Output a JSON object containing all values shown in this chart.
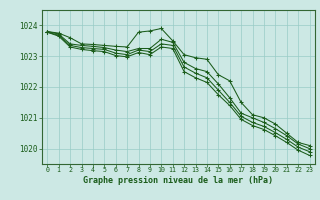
{
  "background_color": "#cce8e4",
  "grid_color": "#99ccc6",
  "line_color": "#1a5c1a",
  "spine_color": "#336633",
  "title": "Graphe pression niveau de la mer (hPa)",
  "xlim": [
    -0.5,
    23.5
  ],
  "ylim": [
    1019.5,
    1024.5
  ],
  "yticks": [
    1020,
    1021,
    1022,
    1023,
    1024
  ],
  "xticks": [
    0,
    1,
    2,
    3,
    4,
    5,
    6,
    7,
    8,
    9,
    10,
    11,
    12,
    13,
    14,
    15,
    16,
    17,
    18,
    19,
    20,
    21,
    22,
    23
  ],
  "series": [
    {
      "x": [
        0,
        1,
        2,
        3,
        4,
        5,
        6,
        7,
        8,
        9,
        10,
        11,
        12,
        13,
        14,
        15,
        16,
        17,
        18,
        19,
        20,
        21,
        22,
        23
      ],
      "y": [
        1023.8,
        1023.75,
        1023.6,
        1023.4,
        1023.38,
        1023.35,
        1023.32,
        1023.3,
        1023.78,
        1023.82,
        1023.9,
        1023.5,
        1023.05,
        1022.95,
        1022.9,
        1022.4,
        1022.2,
        1021.5,
        1021.1,
        1021.0,
        1020.8,
        1020.5,
        1020.2,
        1020.1
      ]
    },
    {
      "x": [
        0,
        1,
        2,
        3,
        4,
        5,
        6,
        7,
        8,
        9,
        10,
        11,
        12,
        13,
        14,
        15,
        16,
        17,
        18,
        19,
        20,
        21,
        22,
        23
      ],
      "y": [
        1023.8,
        1023.72,
        1023.4,
        1023.35,
        1023.32,
        1023.28,
        1023.2,
        1023.15,
        1023.25,
        1023.25,
        1023.55,
        1023.45,
        1022.8,
        1022.6,
        1022.5,
        1022.1,
        1021.65,
        1021.15,
        1021.0,
        1020.85,
        1020.65,
        1020.42,
        1020.15,
        1020.0
      ]
    },
    {
      "x": [
        0,
        1,
        2,
        3,
        4,
        5,
        6,
        7,
        8,
        9,
        10,
        11,
        12,
        13,
        14,
        15,
        16,
        17,
        18,
        19,
        20,
        21,
        22,
        23
      ],
      "y": [
        1023.78,
        1023.68,
        1023.35,
        1023.28,
        1023.25,
        1023.22,
        1023.1,
        1023.05,
        1023.2,
        1023.15,
        1023.4,
        1023.35,
        1022.65,
        1022.45,
        1022.3,
        1021.9,
        1021.5,
        1021.05,
        1020.85,
        1020.72,
        1020.52,
        1020.3,
        1020.05,
        1019.9
      ]
    },
    {
      "x": [
        0,
        1,
        2,
        3,
        4,
        5,
        6,
        7,
        8,
        9,
        10,
        11,
        12,
        13,
        14,
        15,
        16,
        17,
        18,
        19,
        20,
        21,
        22,
        23
      ],
      "y": [
        1023.78,
        1023.65,
        1023.3,
        1023.22,
        1023.18,
        1023.15,
        1023.02,
        1022.98,
        1023.12,
        1023.05,
        1023.3,
        1023.25,
        1022.5,
        1022.3,
        1022.15,
        1021.75,
        1021.4,
        1020.95,
        1020.75,
        1020.62,
        1020.42,
        1020.2,
        1019.95,
        1019.78
      ]
    }
  ]
}
